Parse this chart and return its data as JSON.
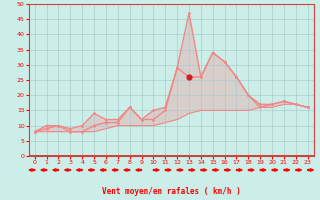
{
  "xlabel": "Vent moyen/en rafales ( km/h )",
  "bg_color": "#cceee8",
  "grid_color": "#aacccc",
  "x_ticks": [
    0,
    1,
    2,
    3,
    4,
    5,
    6,
    7,
    8,
    9,
    10,
    11,
    12,
    13,
    14,
    15,
    16,
    17,
    18,
    19,
    20,
    21,
    22,
    23
  ],
  "ylim": [
    0,
    50
  ],
  "yticks": [
    0,
    5,
    10,
    15,
    20,
    25,
    30,
    35,
    40,
    45,
    50
  ],
  "line_color": "#f08888",
  "line_color_dark": "#cc2222",
  "wind_mean": [
    8,
    9,
    10,
    8,
    8,
    10,
    11,
    11,
    16,
    12,
    12,
    15,
    29,
    26,
    26,
    34,
    31,
    26,
    20,
    16,
    17,
    18,
    17,
    16
  ],
  "wind_gust": [
    8,
    10,
    10,
    9,
    10,
    14,
    12,
    12,
    16,
    12,
    15,
    16,
    29,
    47,
    26,
    34,
    31,
    26,
    20,
    17,
    17,
    18,
    17,
    16
  ],
  "wind_low": [
    8,
    8,
    8,
    8,
    8,
    8,
    9,
    10,
    10,
    10,
    10,
    11,
    12,
    14,
    15,
    15,
    15,
    15,
    15,
    16,
    16,
    17,
    17,
    16
  ],
  "arrows_left": [
    0,
    1,
    2,
    3,
    4,
    5,
    6,
    7,
    8,
    9
  ],
  "arrows_right": [
    10,
    11,
    12,
    13,
    14,
    15,
    16,
    17,
    18,
    19,
    20,
    21,
    22,
    23
  ],
  "dark_point_x": 13,
  "dark_point_y": 26
}
